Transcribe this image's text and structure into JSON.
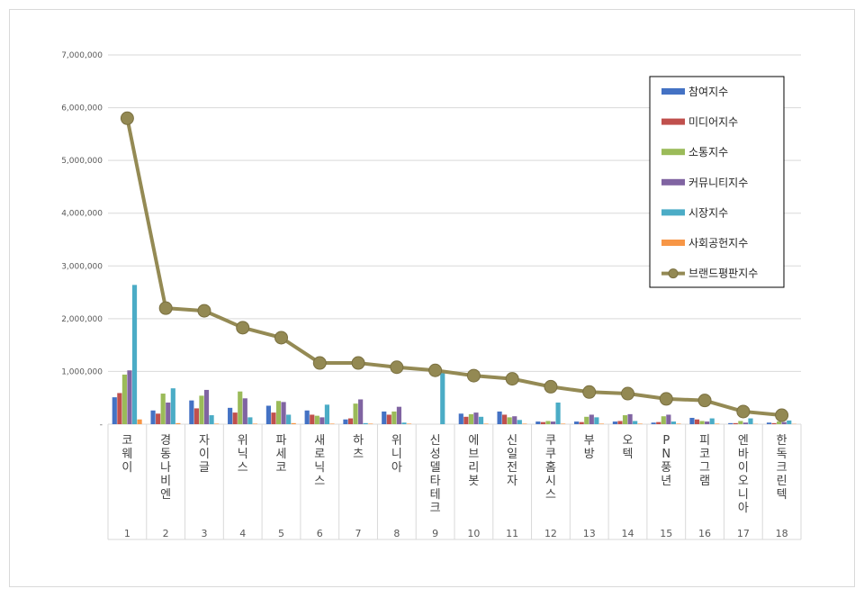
{
  "chart_data": {
    "type": "bar",
    "title": "",
    "xlabel": "",
    "ylabel": "",
    "ylim": [
      0,
      7000000
    ],
    "yticks": [
      "-",
      "1,000,000",
      "2,000,000",
      "3,000,000",
      "4,000,000",
      "5,000,000",
      "6,000,000",
      "7,000,000"
    ],
    "grid": true,
    "legend_position": "top-right",
    "categories": [
      "코웨이",
      "경동나비엔",
      "자이글",
      "위닉스",
      "파세코",
      "새로닉스",
      "하츠",
      "위니아",
      "신성델타테크",
      "에브리봇",
      "신일전자",
      "쿠쿠홈시스",
      "부방",
      "오텍",
      "PN풍년",
      "피코그램",
      "엔바이오니아",
      "한독크린텍"
    ],
    "ranks": [
      "1",
      "2",
      "3",
      "4",
      "5",
      "6",
      "7",
      "8",
      "9",
      "10",
      "11",
      "12",
      "13",
      "14",
      "15",
      "16",
      "17",
      "18"
    ],
    "series": [
      {
        "name": "참여지수",
        "color": "#4472c4",
        "values": [
          510000,
          260000,
          450000,
          310000,
          350000,
          260000,
          90000,
          240000,
          0,
          200000,
          240000,
          50000,
          50000,
          50000,
          30000,
          120000,
          20000,
          30000
        ]
      },
      {
        "name": "미디어지수",
        "color": "#c0504d",
        "values": [
          590000,
          200000,
          300000,
          220000,
          220000,
          180000,
          110000,
          180000,
          0,
          140000,
          180000,
          40000,
          40000,
          60000,
          40000,
          90000,
          20000,
          20000
        ]
      },
      {
        "name": "소통지수",
        "color": "#9bbb59",
        "values": [
          940000,
          580000,
          540000,
          620000,
          440000,
          160000,
          390000,
          240000,
          0,
          190000,
          130000,
          60000,
          140000,
          170000,
          150000,
          60000,
          60000,
          50000
        ]
      },
      {
        "name": "커뮤니티지수",
        "color": "#8064a2",
        "values": [
          1020000,
          410000,
          650000,
          490000,
          420000,
          130000,
          470000,
          330000,
          0,
          220000,
          150000,
          50000,
          180000,
          190000,
          180000,
          50000,
          30000,
          40000
        ]
      },
      {
        "name": "시장지수",
        "color": "#4bacc6",
        "values": [
          2640000,
          680000,
          170000,
          130000,
          180000,
          370000,
          20000,
          30000,
          970000,
          140000,
          80000,
          410000,
          130000,
          60000,
          50000,
          110000,
          110000,
          70000
        ]
      },
      {
        "name": "사회공헌지수",
        "color": "#f79646",
        "values": [
          90000,
          20000,
          10000,
          10000,
          20000,
          10000,
          10000,
          10000,
          0,
          10000,
          10000,
          10000,
          10000,
          10000,
          10000,
          10000,
          5000,
          5000
        ]
      }
    ],
    "line_series": {
      "name": "브랜드평판지수",
      "color": "#948a54",
      "values": [
        5800000,
        2200000,
        2150000,
        1830000,
        1640000,
        1160000,
        1160000,
        1080000,
        1020000,
        920000,
        860000,
        710000,
        610000,
        580000,
        480000,
        450000,
        240000,
        170000
      ]
    }
  }
}
